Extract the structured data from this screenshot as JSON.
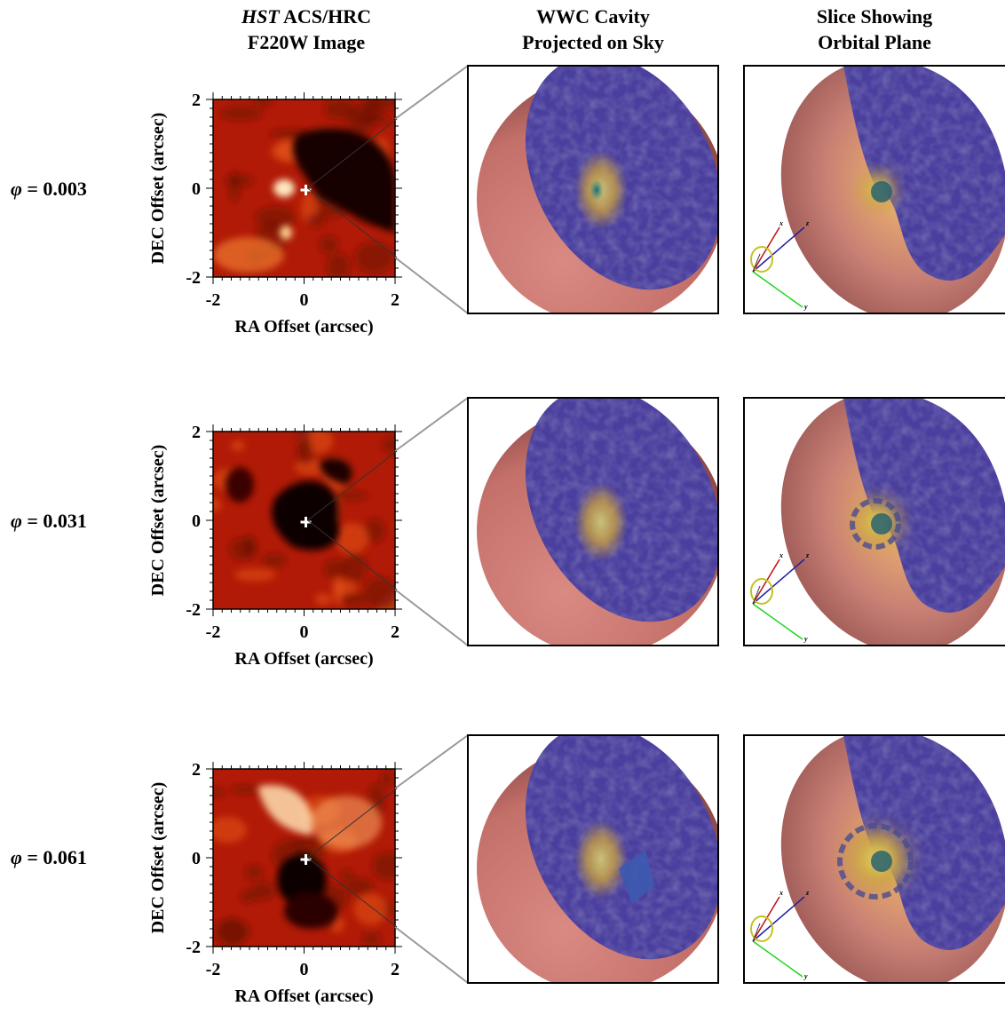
{
  "headers": {
    "col1_line1_italic": "HST",
    "col1_line1_rest": " ACS/HRC",
    "col1_line2": "F220W Image",
    "col2_line1": "WWC Cavity",
    "col2_line2": "Projected on Sky",
    "col3_line1": "Slice Showing",
    "col3_line2": "Orbital Plane"
  },
  "phase_symbol": "φ",
  "rows": [
    {
      "phase_label": " = 0.003"
    },
    {
      "phase_label": " = 0.031"
    },
    {
      "phase_label": " = 0.061"
    }
  ],
  "axes": {
    "xlabel": "RA Offset (arcsec)",
    "ylabel": "DEC Offset (arcsec)",
    "xticks": [
      "-2",
      "0",
      "2"
    ],
    "yticks": [
      "2",
      "0",
      "-2"
    ]
  },
  "triad_labels": [
    "x",
    "z",
    "y"
  ],
  "colors": {
    "image_base": "#b11a06",
    "sphere": "#c97a70",
    "cavity": "#4a3f9e"
  }
}
